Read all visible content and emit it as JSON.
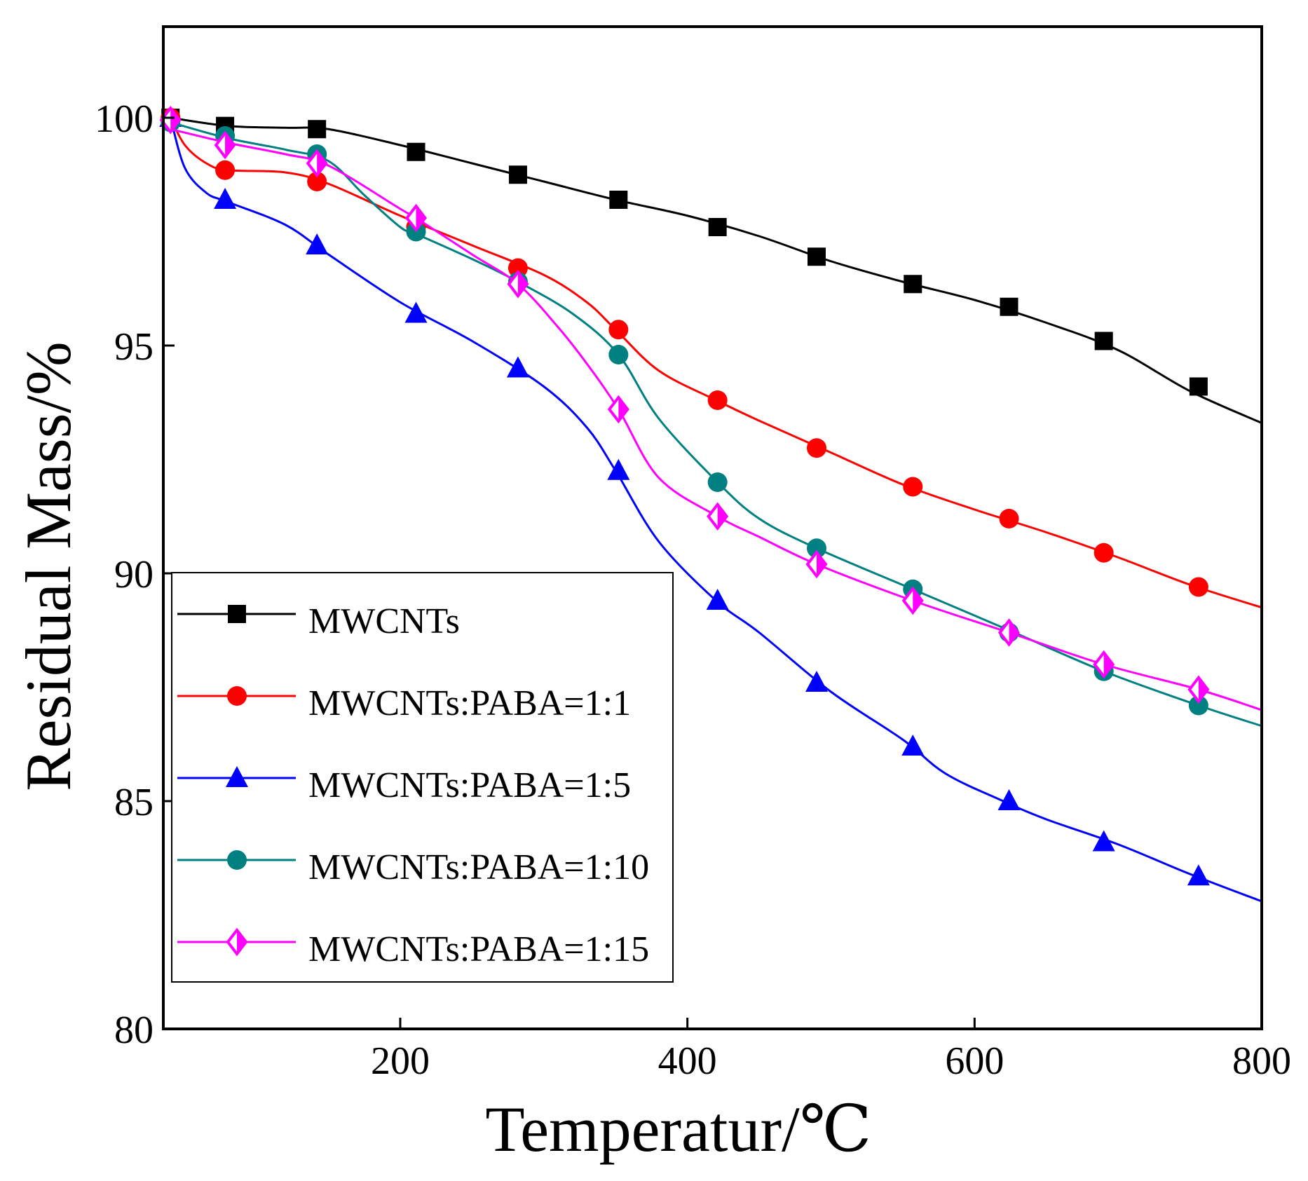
{
  "chart_data": {
    "type": "line",
    "title": "",
    "xlabel": "Temperatur/℃",
    "ylabel": "Residual Mass/%",
    "xlim": [
      35,
      800
    ],
    "ylim": [
      80,
      102
    ],
    "xticks": [
      200,
      400,
      600,
      800
    ],
    "yticks": [
      80,
      85,
      90,
      95,
      100
    ],
    "xtick_labels": [
      "200",
      "400",
      "600",
      "800"
    ],
    "ytick_labels": [
      "80",
      "85",
      "90",
      "95",
      "100"
    ],
    "legend_position": "bottom-left",
    "grid": false,
    "series": [
      {
        "name": "MWCNTs",
        "color": "#000000",
        "marker": "square",
        "x": [
          40,
          80,
          120,
          150,
          200,
          250,
          300,
          350,
          400,
          450,
          500,
          550,
          600,
          650,
          700,
          750,
          800
        ],
        "y": [
          100.0,
          99.82,
          99.78,
          99.75,
          99.4,
          99.0,
          98.6,
          98.2,
          97.85,
          97.4,
          96.85,
          96.4,
          96.0,
          95.5,
          94.9,
          94.0,
          93.3
        ],
        "markers_x": [
          40,
          78,
          142,
          211,
          282,
          352,
          421,
          490,
          557,
          624,
          690,
          756
        ],
        "markers_y": [
          100.0,
          99.82,
          99.75,
          99.25,
          98.75,
          98.2,
          97.6,
          96.95,
          96.35,
          95.85,
          95.1,
          94.1
        ]
      },
      {
        "name": "MWCNTs:PABA=1:1",
        "color": "#ff0000",
        "marker": "circle",
        "x": [
          40,
          50,
          65,
          80,
          120,
          150,
          200,
          250,
          300,
          330,
          350,
          380,
          420,
          450,
          500,
          550,
          600,
          650,
          700,
          750,
          800
        ],
        "y": [
          100.0,
          99.4,
          99.0,
          98.85,
          98.8,
          98.55,
          97.85,
          97.2,
          96.55,
          95.95,
          95.35,
          94.45,
          93.8,
          93.35,
          92.65,
          91.95,
          91.4,
          90.9,
          90.35,
          89.75,
          89.25
        ],
        "markers_x": [
          40,
          78,
          142,
          211,
          282,
          352,
          421,
          490,
          557,
          624,
          690,
          756
        ],
        "markers_y": [
          100.0,
          98.85,
          98.6,
          97.6,
          96.7,
          95.35,
          93.8,
          92.75,
          91.9,
          91.2,
          90.45,
          89.7
        ]
      },
      {
        "name": "MWCNTs:PABA=1:5",
        "color": "#0000ff",
        "marker": "triangle",
        "x": [
          40,
          50,
          65,
          80,
          120,
          150,
          200,
          250,
          300,
          330,
          350,
          380,
          420,
          450,
          500,
          550,
          580,
          620,
          650,
          700,
          750,
          800
        ],
        "y": [
          100.0,
          98.9,
          98.35,
          98.15,
          97.65,
          97.0,
          95.95,
          95.1,
          94.1,
          93.2,
          92.25,
          90.7,
          89.4,
          88.7,
          87.4,
          86.35,
          85.6,
          85.0,
          84.6,
          84.05,
          83.4,
          82.8
        ],
        "markers_x": [
          40,
          78,
          142,
          211,
          282,
          352,
          421,
          490,
          557,
          624,
          690,
          756
        ],
        "markers_y": [
          100.0,
          98.2,
          97.2,
          95.7,
          94.5,
          92.25,
          89.4,
          87.6,
          86.2,
          85.0,
          84.1,
          83.35
        ]
      },
      {
        "name": "MWCNTs:PABA=1:10",
        "color": "#008080",
        "marker": "circle",
        "x": [
          40,
          80,
          120,
          150,
          175,
          200,
          211,
          250,
          282,
          320,
          352,
          380,
          421,
          450,
          490,
          557,
          624,
          690,
          756,
          800
        ],
        "y": [
          99.9,
          99.55,
          99.3,
          99.05,
          98.3,
          97.6,
          97.45,
          96.9,
          96.4,
          95.7,
          94.8,
          93.4,
          92.0,
          91.2,
          90.55,
          89.65,
          88.75,
          87.85,
          87.1,
          86.65
        ],
        "markers_x": [
          40,
          78,
          142,
          211,
          282,
          352,
          421,
          490,
          557,
          624,
          690,
          756
        ],
        "markers_y": [
          99.9,
          99.6,
          99.2,
          97.5,
          96.4,
          94.8,
          92.0,
          90.55,
          89.65,
          88.7,
          87.85,
          87.1
        ]
      },
      {
        "name": "MWCNTs:PABA=1:15",
        "color": "#ff00ff",
        "marker": "diamond-half",
        "x": [
          40,
          80,
          120,
          150,
          200,
          211,
          250,
          282,
          310,
          330,
          352,
          380,
          421,
          450,
          490,
          557,
          624,
          690,
          756,
          800
        ],
        "y": [
          99.75,
          99.45,
          99.2,
          98.95,
          98.0,
          97.8,
          97.0,
          96.35,
          95.4,
          94.6,
          93.6,
          92.1,
          91.25,
          90.8,
          90.2,
          89.4,
          88.7,
          88.0,
          87.45,
          87.0
        ],
        "markers_x": [
          40,
          78,
          142,
          211,
          282,
          352,
          421,
          490,
          557,
          624,
          690,
          756
        ],
        "markers_y": [
          99.95,
          99.4,
          99.0,
          97.8,
          96.35,
          93.6,
          91.25,
          90.2,
          89.4,
          88.7,
          88.0,
          87.45
        ]
      }
    ]
  }
}
